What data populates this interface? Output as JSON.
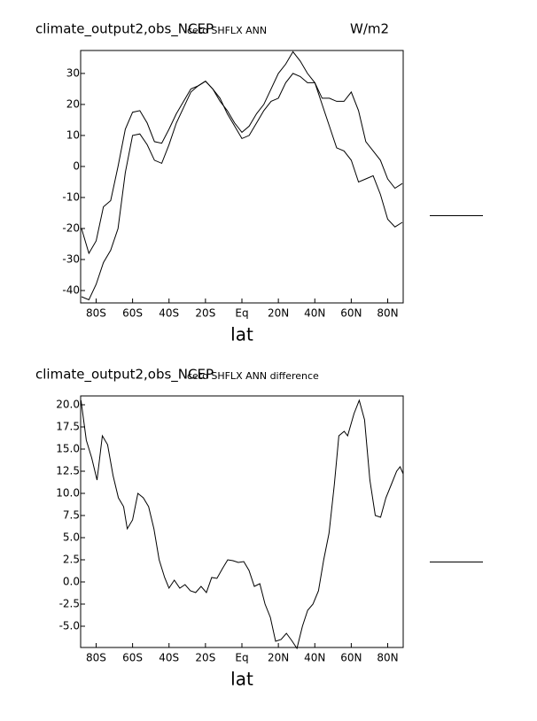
{
  "chart_data": [
    {
      "type": "line",
      "title": "climate_output2,obs_NCEP",
      "subtitle": "ceto SHFLX ANN",
      "units": "W/m2",
      "xlabel": "lat",
      "x": [
        -88,
        -84,
        -80,
        -76,
        -72,
        -68,
        -64,
        -60,
        -56,
        -52,
        -48,
        -44,
        -40,
        -36,
        -32,
        -28,
        -24,
        -20,
        -16,
        -12,
        -8,
        -4,
        0,
        4,
        8,
        12,
        16,
        20,
        24,
        28,
        32,
        36,
        40,
        44,
        48,
        52,
        56,
        60,
        64,
        68,
        72,
        76,
        80,
        84,
        88
      ],
      "series": [
        {
          "color": "#000000",
          "values": [
            -20,
            -28,
            -24,
            -13,
            -11,
            0,
            12,
            17.5,
            18,
            14,
            8,
            7.5,
            12,
            17,
            21,
            25,
            26,
            27.5,
            25,
            21,
            18,
            14,
            11,
            13,
            17,
            20,
            25,
            30,
            33,
            37,
            34,
            30,
            27,
            20,
            13,
            6,
            5,
            2,
            -5,
            -4,
            -3,
            -9,
            -17,
            -19.5,
            -18
          ]
        },
        {
          "color": "#000000",
          "values": [
            -42,
            -43,
            -38,
            -31,
            -27,
            -20,
            -2,
            10,
            10.5,
            7,
            2,
            1,
            7,
            14,
            19,
            24,
            26,
            27.5,
            25,
            22,
            17,
            13,
            9,
            10,
            14,
            18,
            21,
            22,
            27,
            30,
            29,
            27,
            27,
            22,
            22,
            21,
            21,
            24,
            18,
            8,
            5,
            2,
            -4,
            -7,
            -5.5
          ]
        }
      ],
      "xlim": [
        -88.5,
        88.5
      ],
      "ylim": [
        -44,
        37.4
      ],
      "xticks": [
        {
          "value": -80,
          "label": "80S"
        },
        {
          "value": -60,
          "label": "60S"
        },
        {
          "value": -40,
          "label": "40S"
        },
        {
          "value": -20,
          "label": "20S"
        },
        {
          "value": 0,
          "label": "Eq"
        },
        {
          "value": 20,
          "label": "20N"
        },
        {
          "value": 40,
          "label": "40N"
        },
        {
          "value": 60,
          "label": "60N"
        },
        {
          "value": 80,
          "label": "80N"
        }
      ],
      "yticks": [
        30,
        20,
        10,
        0,
        -10,
        -20,
        -30,
        -40
      ]
    },
    {
      "type": "line",
      "title": "climate_output2,obs_NCEP",
      "subtitle": "ceto SHFLX ANN difference",
      "xlabel": "lat",
      "x": [
        -88.3,
        -85.4,
        -82.4,
        -79.5,
        -76.6,
        -73.7,
        -70.7,
        -67.8,
        -64.9,
        -62.9,
        -60,
        -57.1,
        -54.1,
        -51.2,
        -48.3,
        -45.4,
        -42.4,
        -40,
        -37.1,
        -34.1,
        -31.2,
        -28.3,
        -25.4,
        -22.4,
        -19.5,
        -16.6,
        -13.7,
        -10.7,
        -7.8,
        -4.9,
        -2,
        1,
        3.9,
        6.8,
        9.8,
        12.7,
        15.6,
        18.5,
        21.5,
        24.4,
        27.3,
        30.2,
        33.2,
        36.1,
        39,
        42,
        44.9,
        47.8,
        50.7,
        53.2,
        56.1,
        58,
        61.5,
        64.4,
        67.3,
        70.2,
        73.2,
        76.1,
        79,
        82,
        84.9,
        86.8,
        88.5
      ],
      "series": [
        {
          "color": "#000000",
          "values": [
            20.5,
            16,
            14,
            11.5,
            16.5,
            15.5,
            12,
            9.5,
            8.5,
            6,
            7,
            10,
            9.5,
            8.5,
            6,
            2.5,
            0.5,
            -0.7,
            0.2,
            -0.7,
            -0.3,
            -1,
            -1.2,
            -0.5,
            -1.2,
            0.5,
            0.4,
            1.5,
            2.5,
            2.4,
            2.2,
            2.3,
            1.3,
            -0.5,
            -0.2,
            -2.5,
            -4,
            -6.7,
            -6.5,
            -5.8,
            -6.6,
            -7.5,
            -5,
            -3.2,
            -2.5,
            -1,
            2.5,
            5.5,
            11,
            16.5,
            17,
            16.5,
            19,
            20.5,
            18.3,
            11.5,
            7.5,
            7.3,
            9.5,
            11,
            12.5,
            13,
            12.2
          ]
        }
      ],
      "xlim": [
        -88.5,
        88.5
      ],
      "ylim": [
        -7.4,
        21.0
      ],
      "xticks": [
        {
          "value": -80,
          "label": "80S"
        },
        {
          "value": -60,
          "label": "60S"
        },
        {
          "value": -40,
          "label": "40S"
        },
        {
          "value": -20,
          "label": "20S"
        },
        {
          "value": 0,
          "label": "Eq"
        },
        {
          "value": 20,
          "label": "20N"
        },
        {
          "value": 40,
          "label": "40N"
        },
        {
          "value": 60,
          "label": "60N"
        },
        {
          "value": 80,
          "label": "80N"
        }
      ],
      "yticks": [
        {
          "value": 20,
          "label": "20.0"
        },
        {
          "value": 17.5,
          "label": "17.5"
        },
        {
          "value": 15,
          "label": "15.0"
        },
        {
          "value": 12.5,
          "label": "12.5"
        },
        {
          "value": 10,
          "label": "10.0"
        },
        {
          "value": 7.5,
          "label": "7.5"
        },
        {
          "value": 5,
          "label": "5.0"
        },
        {
          "value": 2.5,
          "label": "2.5"
        },
        {
          "value": 0,
          "label": "0.0"
        },
        {
          "value": -2.5,
          "label": "-2.5"
        },
        {
          "value": -5,
          "label": "-5.0"
        }
      ]
    }
  ]
}
